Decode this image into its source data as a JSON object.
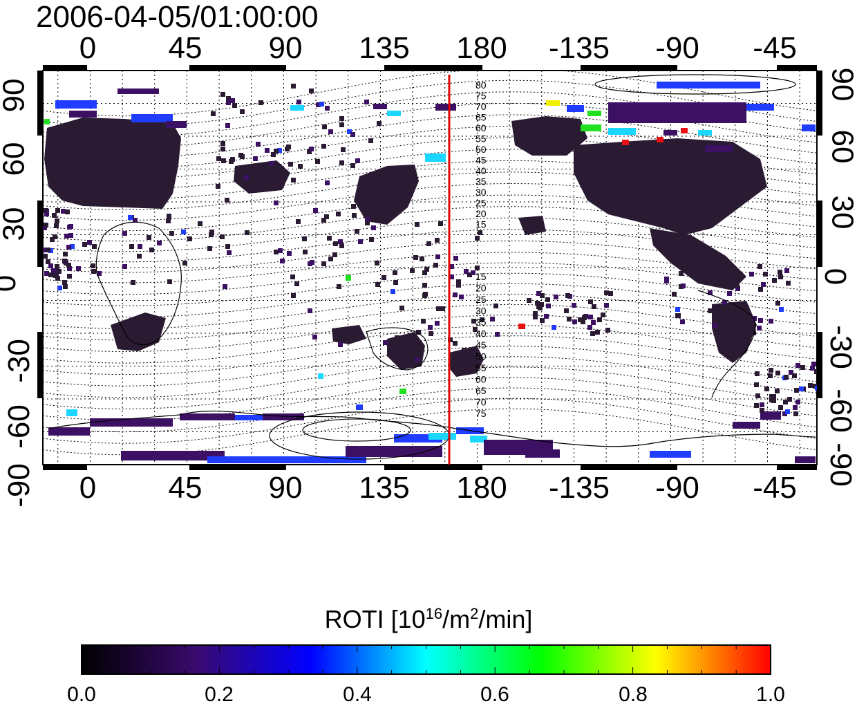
{
  "title": "2006-04-05/01:00:00",
  "map": {
    "x_ticks_top": [
      "0",
      "45",
      "90",
      "135",
      "180",
      "-135",
      "-90",
      "-45"
    ],
    "x_ticks_bottom": [
      "0",
      "45",
      "90",
      "135",
      "180",
      "-135",
      "-90",
      "-45"
    ],
    "y_ticks_left": [
      "90",
      "60",
      "30",
      "0",
      "-30",
      "-60",
      "-90"
    ],
    "y_ticks_right": [
      "90",
      "60",
      "30",
      "0",
      "-30",
      "-60",
      "-90"
    ],
    "marker_line_longitude": 167,
    "marker_line_color": "#e00000",
    "contour_labels_north": [
      "80",
      "75",
      "70",
      "65",
      "60",
      "55",
      "50",
      "45",
      "40",
      "35",
      "30",
      "25",
      "20",
      "15"
    ],
    "contour_labels_south": [
      "15",
      "20",
      "25",
      "30",
      "35",
      "40",
      "45",
      "50",
      "55",
      "60",
      "65",
      "70",
      "75"
    ]
  },
  "colorbar": {
    "title_prefix": "ROTI  [10",
    "title_exp1": "16",
    "title_mid": "/m",
    "title_exp2": "2",
    "title_suffix": "/min]",
    "ticks": [
      "0.0",
      "0.2",
      "0.4",
      "0.6",
      "0.8",
      "1.0"
    ],
    "stops": [
      "#000000",
      "#3a0a6e",
      "#0000ff",
      "#00ffff",
      "#00ff00",
      "#ffff00",
      "#ff0000"
    ]
  },
  "colors": {
    "land_dark": "#2a1b33",
    "patch_purple": "#3c1163",
    "patch_blue": "#1f3cff",
    "patch_cyan": "#1bd6ff",
    "patch_green": "#20e020",
    "patch_yellow": "#f0f000",
    "patch_red": "#e81010"
  }
}
